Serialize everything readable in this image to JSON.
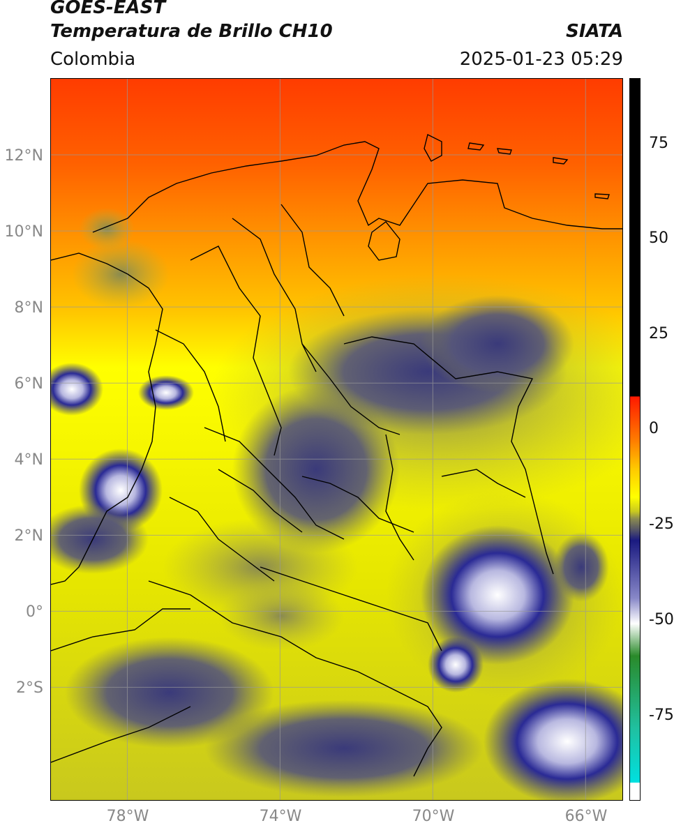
{
  "header": {
    "satellite": "GOES-EAST",
    "product": "Temperatura de Brillo CH10",
    "region": "Colombia",
    "agency": "SIATA",
    "timestamp": "2025-01-23 05:29"
  },
  "map": {
    "lon_range": [
      -80,
      -65
    ],
    "lat_range": [
      -5,
      14
    ],
    "lat_ticks": [
      {
        "value": 12,
        "label": "12°N"
      },
      {
        "value": 10,
        "label": "10°N"
      },
      {
        "value": 8,
        "label": "8°N"
      },
      {
        "value": 6,
        "label": "6°N"
      },
      {
        "value": 4,
        "label": "4°N"
      },
      {
        "value": 2,
        "label": "2°N"
      },
      {
        "value": 0,
        "label": "0°"
      },
      {
        "value": -2,
        "label": "2°S"
      }
    ],
    "lon_ticks": [
      {
        "value": -78,
        "label": "78°W"
      },
      {
        "value": -74,
        "label": "74°W"
      },
      {
        "value": -70,
        "label": "70°W"
      },
      {
        "value": -66,
        "label": "66°W"
      }
    ],
    "gridlines": true
  },
  "colorbar": {
    "range": [
      -95,
      90
    ],
    "ticks": [
      {
        "value": 75,
        "label": "75"
      },
      {
        "value": 50,
        "label": "50"
      },
      {
        "value": 25,
        "label": "25"
      },
      {
        "value": 0,
        "label": "0"
      },
      {
        "value": -25,
        "label": "-25"
      },
      {
        "value": -50,
        "label": "-50"
      },
      {
        "value": -75,
        "label": "-75"
      }
    ],
    "colors": {
      "black": "#000000",
      "red": "#ff2a00",
      "orange": "#ff8c00",
      "yellow": "#ffff00",
      "olive": "#c8c820",
      "gray": "#555566",
      "navy": "#1a1a80",
      "white": "#ffffff",
      "green": "#2a8a2a",
      "cyan": "#00d8d8"
    }
  }
}
